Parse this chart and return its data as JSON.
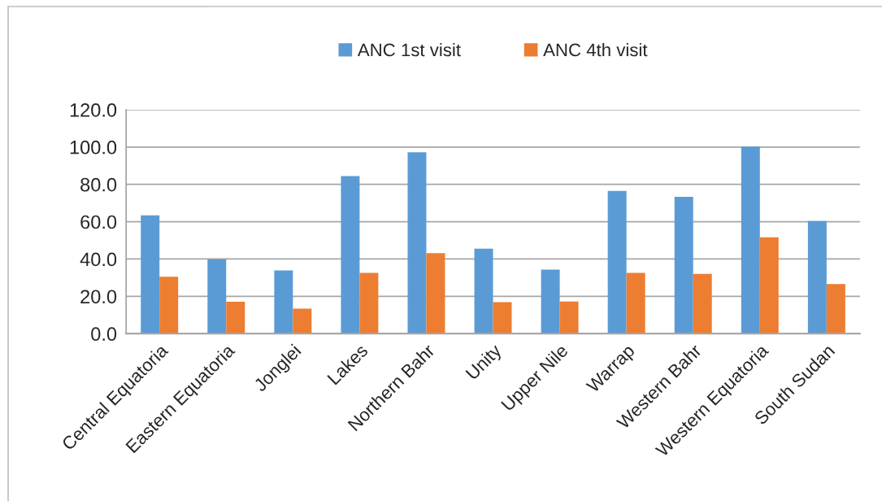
{
  "chart_data": {
    "type": "bar",
    "categories": [
      "Central Equatoria",
      "Eastern Equatoria",
      "Jonglei",
      "Lakes",
      "Northern Bahr",
      "Unity",
      "Upper Nile",
      "Warrap",
      "Western Bahr",
      "Western Equatoria",
      "South Sudan"
    ],
    "series": [
      {
        "name": "ANC 1st visit",
        "color": "#5b9bd5",
        "values": [
          63.4,
          39.8,
          33.9,
          84.4,
          97.2,
          45.5,
          34.3,
          76.5,
          73.3,
          100.2,
          60.4
        ]
      },
      {
        "name": "ANC 4th visit",
        "color": "#ed7d31",
        "values": [
          30.5,
          17.1,
          13.4,
          32.6,
          43.1,
          16.9,
          17.2,
          32.6,
          32.0,
          51.7,
          26.6
        ]
      }
    ],
    "ylim": [
      0,
      120
    ],
    "yticks": [
      {
        "value": 0,
        "label": "0.0"
      },
      {
        "value": 20,
        "label": "20.0"
      },
      {
        "value": 40,
        "label": "40.0"
      },
      {
        "value": 60,
        "label": "60.0"
      },
      {
        "value": 80,
        "label": "80.0"
      },
      {
        "value": 100,
        "label": "100.0"
      },
      {
        "value": 120,
        "label": "120.0"
      }
    ],
    "grid": "y",
    "legend": "top"
  }
}
